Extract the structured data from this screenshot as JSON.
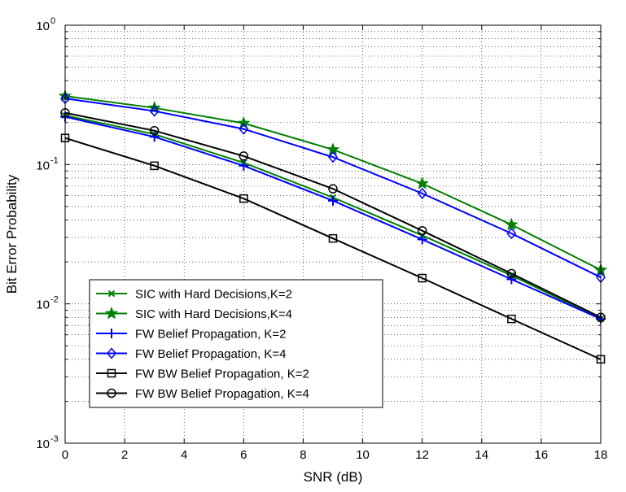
{
  "chart_data": {
    "type": "line",
    "title": "",
    "xlabel": "SNR (dB)",
    "ylabel": "Bit Error Probability",
    "xlim": [
      0,
      18
    ],
    "ylim": [
      0.001,
      1
    ],
    "yscale": "log",
    "grid": true,
    "legend_position": "bottom-left",
    "x_ticks": [
      0,
      2,
      4,
      6,
      8,
      10,
      12,
      14,
      16,
      18
    ],
    "x_tick_labels": [
      "0",
      "2",
      "4",
      "6",
      "8",
      "10",
      "12",
      "14",
      "16",
      "18"
    ],
    "y_ticks": [
      {
        "value": 0.001,
        "base": "10",
        "exp": "-3"
      },
      {
        "value": 0.01,
        "base": "10",
        "exp": "-2"
      },
      {
        "value": 0.1,
        "base": "10",
        "exp": "-1"
      },
      {
        "value": 1,
        "base": "10",
        "exp": "0"
      }
    ],
    "x": [
      0,
      3,
      6,
      9,
      12,
      15,
      18
    ],
    "series": [
      {
        "name": "SIC with Hard Decisions,K=2",
        "color": "#007F00",
        "marker": "x",
        "values": [
          0.225,
          0.165,
          0.103,
          0.058,
          0.031,
          0.016,
          0.0078
        ]
      },
      {
        "name": "SIC with Hard Decisions,K=4",
        "color": "#007F00",
        "marker": "star",
        "values": [
          0.31,
          0.255,
          0.198,
          0.128,
          0.073,
          0.037,
          0.0175
        ]
      },
      {
        "name": "FW Belief Propagation, K=2",
        "color": "#0000FF",
        "marker": "plus",
        "values": [
          0.22,
          0.158,
          0.098,
          0.055,
          0.029,
          0.015,
          0.0078
        ]
      },
      {
        "name": "FW Belief Propagation, K=4",
        "color": "#0000FF",
        "marker": "diamond",
        "values": [
          0.298,
          0.242,
          0.18,
          0.113,
          0.062,
          0.032,
          0.0155
        ]
      },
      {
        "name": "FW BW Belief Propagation, K=2",
        "color": "#000000",
        "marker": "square",
        "values": [
          0.155,
          0.098,
          0.057,
          0.0295,
          0.0153,
          0.0078,
          0.004
        ]
      },
      {
        "name": "FW BW Belief Propagation, K=4",
        "color": "#000000",
        "marker": "circle",
        "values": [
          0.235,
          0.175,
          0.115,
          0.067,
          0.0335,
          0.0165,
          0.008
        ]
      }
    ]
  }
}
